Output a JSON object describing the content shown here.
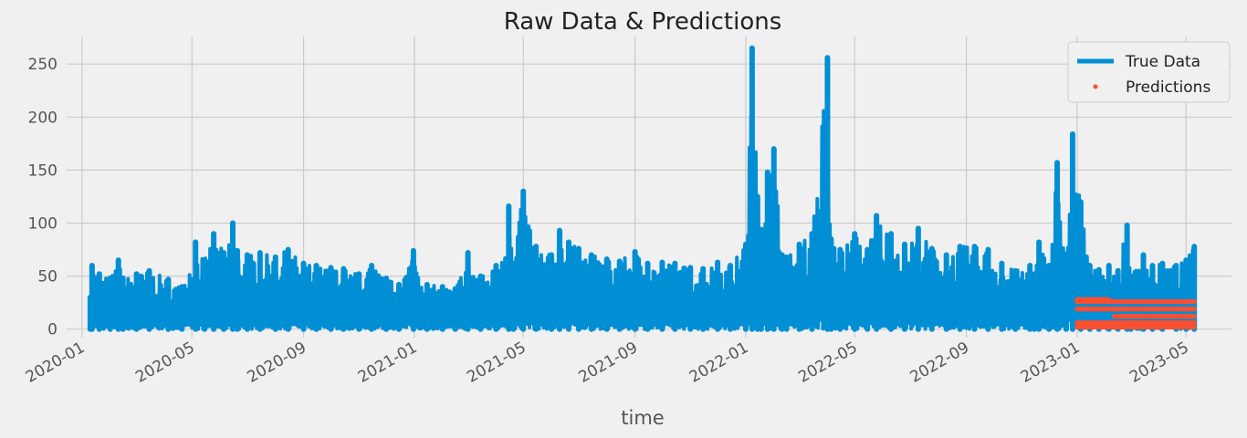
{
  "chart_data": {
    "type": "line",
    "title": "Raw Data & Predictions",
    "xlabel": "time",
    "ylabel": "",
    "x_axis_type": "date",
    "xlim": [
      "2019-12-15",
      "2023-06-20"
    ],
    "ylim": [
      -8,
      276
    ],
    "grid": true,
    "legend_position": "top-right",
    "x_ticks": [
      "2020-01",
      "2020-05",
      "2020-09",
      "2021-01",
      "2021-05",
      "2021-09",
      "2022-01",
      "2022-05",
      "2022-09",
      "2023-01",
      "2023-05"
    ],
    "y_ticks": [
      0,
      50,
      100,
      150,
      200,
      250
    ],
    "series": [
      {
        "name": "True Data",
        "style": "line",
        "color": "#008fd5",
        "x": [
          "2020-01-10",
          "2020-01-12",
          "2020-01-20",
          "2020-02-01",
          "2020-02-10",
          "2020-02-15",
          "2020-03-01",
          "2020-03-15",
          "2020-04-05",
          "2020-04-20",
          "2020-05-05",
          "2020-05-15",
          "2020-05-25",
          "2020-06-05",
          "2020-06-15",
          "2020-06-20",
          "2020-07-01",
          "2020-07-15",
          "2020-08-01",
          "2020-08-15",
          "2020-09-01",
          "2020-09-15",
          "2020-10-01",
          "2020-10-15",
          "2020-11-01",
          "2020-11-15",
          "2020-12-01",
          "2020-12-15",
          "2020-12-31",
          "2021-01-15",
          "2021-02-01",
          "2021-02-15",
          "2021-03-01",
          "2021-03-15",
          "2021-04-01",
          "2021-04-15",
          "2021-04-20",
          "2021-05-01",
          "2021-05-15",
          "2021-06-01",
          "2021-06-10",
          "2021-06-20",
          "2021-07-01",
          "2021-07-15",
          "2021-08-01",
          "2021-08-15",
          "2021-09-01",
          "2021-09-15",
          "2021-10-01",
          "2021-10-15",
          "2021-11-01",
          "2021-11-15",
          "2021-12-01",
          "2021-12-15",
          "2022-01-01",
          "2022-01-08",
          "2022-01-14",
          "2022-01-18",
          "2022-01-25",
          "2022-02-01",
          "2022-02-10",
          "2022-02-15",
          "2022-03-01",
          "2022-03-15",
          "2022-04-01",
          "2022-04-05",
          "2022-04-15",
          "2022-05-01",
          "2022-05-15",
          "2022-05-25",
          "2022-06-10",
          "2022-06-25",
          "2022-07-10",
          "2022-07-25",
          "2022-08-10",
          "2022-08-25",
          "2022-09-10",
          "2022-09-25",
          "2022-10-10",
          "2022-10-25",
          "2022-11-10",
          "2022-11-15",
          "2022-11-20",
          "2022-12-01",
          "2022-12-10",
          "2022-12-20",
          "2022-12-27",
          "2023-01-05",
          "2023-01-15",
          "2023-01-25",
          "2023-02-05",
          "2023-02-15",
          "2023-02-25",
          "2023-03-01",
          "2023-03-15",
          "2023-03-25",
          "2023-04-05",
          "2023-04-20",
          "2023-05-01",
          "2023-05-10"
        ],
        "y": [
          30,
          60,
          52,
          48,
          65,
          48,
          52,
          55,
          47,
          40,
          82,
          65,
          90,
          72,
          100,
          74,
          70,
          72,
          68,
          75,
          62,
          60,
          58,
          57,
          52,
          60,
          48,
          42,
          74,
          42,
          40,
          38,
          72,
          50,
          60,
          116,
          62,
          130,
          78,
          70,
          93,
          82,
          76,
          70,
          66,
          64,
          73,
          62,
          63,
          62,
          58,
          57,
          63,
          60,
          80,
          265,
          125,
          94,
          148,
          170,
          70,
          68,
          80,
          90,
          256,
          85,
          75,
          90,
          75,
          107,
          90,
          80,
          95,
          76,
          70,
          78,
          78,
          75,
          62,
          55,
          60,
          52,
          82,
          60,
          157,
          65,
          184,
          120,
          60,
          56,
          60,
          55,
          98,
          50,
          70,
          60,
          62,
          60,
          65,
          78
        ]
      },
      {
        "name": "Predictions",
        "style": "points",
        "color": "#fc4f30",
        "x_range": [
          "2023-01-01",
          "2023-05-10"
        ],
        "levels": [
          28,
          26,
          19,
          12,
          6,
          2
        ]
      }
    ]
  }
}
